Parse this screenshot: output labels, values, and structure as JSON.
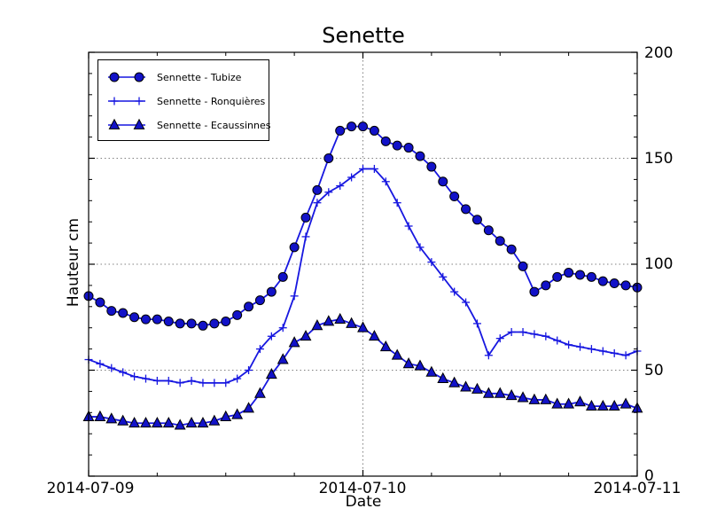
{
  "chart_data": {
    "type": "line",
    "title": "Senette",
    "xlabel": "Date",
    "ylabel": "Hauteur cm",
    "ylim": [
      0,
      200
    ],
    "xlim_hours": [
      0,
      48
    ],
    "grid": {
      "h_lines": [
        50,
        100,
        150
      ],
      "v_lines_hours": [
        24
      ]
    },
    "x_tick_labels": [
      "2014-07-09",
      "2014-07-10",
      "2014-07-11"
    ],
    "x_tick_hours": [
      0,
      24,
      48
    ],
    "x_minor_tick_hours": [
      6,
      12,
      18,
      30,
      36,
      42
    ],
    "y_tick_labels": [
      "0",
      "50",
      "100",
      "150",
      "200"
    ],
    "y_ticks": [
      0,
      50,
      100,
      150,
      200
    ],
    "y_minor_step": 10,
    "legend_position": "upper left",
    "x_hours": [
      0,
      1,
      2,
      3,
      4,
      5,
      6,
      7,
      8,
      9,
      10,
      11,
      12,
      13,
      14,
      15,
      16,
      17,
      18,
      19,
      20,
      21,
      22,
      23,
      24,
      25,
      26,
      27,
      28,
      29,
      30,
      31,
      32,
      33,
      34,
      35,
      36,
      37,
      38,
      39,
      40,
      41,
      42,
      43,
      44,
      45,
      46,
      47,
      48
    ],
    "series": [
      {
        "name": "Sennette - Tubize",
        "marker": "circle",
        "values": [
          85,
          82,
          78,
          77,
          75,
          74,
          74,
          73,
          72,
          72,
          71,
          72,
          73,
          76,
          80,
          83,
          87,
          94,
          108,
          122,
          135,
          150,
          163,
          165,
          165,
          163,
          158,
          156,
          155,
          151,
          146,
          139,
          132,
          126,
          121,
          116,
          111,
          107,
          99,
          87,
          90,
          94,
          96,
          95,
          94,
          92,
          91,
          90,
          89
        ]
      },
      {
        "name": "Sennette - Ronquières",
        "marker": "plus",
        "values": [
          55,
          53,
          51,
          49,
          47,
          46,
          45,
          45,
          44,
          45,
          44,
          44,
          44,
          46,
          50,
          60,
          66,
          70,
          85,
          113,
          129,
          134,
          137,
          141,
          145,
          145,
          139,
          129,
          118,
          108,
          101,
          94,
          87,
          82,
          72,
          57,
          65,
          68,
          68,
          67,
          66,
          64,
          62,
          61,
          60,
          59,
          58,
          57,
          59
        ]
      },
      {
        "name": "Sennette - Ecaussinnes",
        "marker": "triangle",
        "values": [
          28,
          28,
          27,
          26,
          25,
          25,
          25,
          25,
          24,
          25,
          25,
          26,
          28,
          29,
          32,
          39,
          48,
          55,
          63,
          66,
          71,
          73,
          74,
          72,
          70,
          66,
          61,
          57,
          53,
          52,
          49,
          46,
          44,
          42,
          41,
          39,
          39,
          38,
          37,
          36,
          36,
          34,
          34,
          35,
          33,
          33,
          33,
          34,
          32
        ]
      }
    ],
    "colors": {
      "line": "#1717e0",
      "marker_fill": "#1212c8",
      "marker_edge": "#000000",
      "grid": "#808080",
      "axis": "#000000",
      "background": "#ffffff"
    }
  }
}
